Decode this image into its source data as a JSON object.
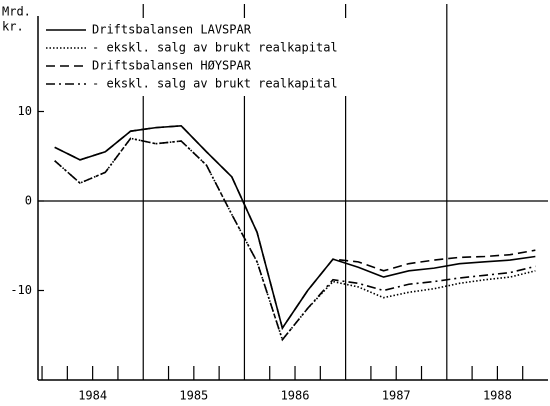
{
  "chart_data": {
    "type": "line",
    "y_unit_label": [
      "Mrd.",
      "kr."
    ],
    "x": [
      1984.125,
      1984.375,
      1984.625,
      1984.875,
      1985.125,
      1985.375,
      1985.625,
      1985.875,
      1986.125,
      1986.375,
      1986.625,
      1986.875,
      1987.125,
      1987.375,
      1987.625,
      1987.875,
      1988.125,
      1988.375,
      1988.625,
      1988.875
    ],
    "series": [
      {
        "name": "Driftsbalansen LAVSPAR",
        "color": "#000000",
        "dash": "solid",
        "values": [
          6,
          4.6,
          5.5,
          7.8,
          8.2,
          8.4,
          5.5,
          2.7,
          -3.5,
          -14.2,
          -10,
          -6.5,
          -7.4,
          -8.5,
          -7.8,
          -7.5,
          -7,
          -6.8,
          -6.6,
          -6.2
        ]
      },
      {
        "name": "- ekskl. salg av brukt realkapital",
        "color": "#000000",
        "dash": "dotted",
        "values": [
          4.5,
          2,
          3.2,
          7,
          6.4,
          6.7,
          4,
          -1.5,
          -6.8,
          -15.5,
          -12,
          -9,
          -9.6,
          -10.8,
          -10.2,
          -9.8,
          -9.2,
          -8.8,
          -8.5,
          -7.8
        ]
      },
      {
        "name": "Driftsbalansen HØYSPAR",
        "color": "#000000",
        "dash": "dashed",
        "values": [
          6,
          4.6,
          5.5,
          7.8,
          8.2,
          8.4,
          5.5,
          2.7,
          -3.5,
          -14.2,
          -10,
          -6.5,
          -6.8,
          -7.8,
          -7,
          -6.6,
          -6.3,
          -6.2,
          -6,
          -5.5
        ]
      },
      {
        "name": "- ekskl. salg av brukt realkapital",
        "color": "#000000",
        "dash": "dashdot",
        "values": [
          4.5,
          2,
          3.2,
          7,
          6.4,
          6.7,
          4,
          -1.5,
          -6.8,
          -15.5,
          -12,
          -8.8,
          -9.2,
          -10,
          -9.3,
          -9,
          -8.6,
          -8.3,
          -8,
          -7.3
        ]
      }
    ],
    "xlim": [
      1983.96,
      1989.0
    ],
    "ylim": [
      -20,
      20
    ],
    "yticks": [
      -10,
      0,
      10
    ],
    "xticks": [
      {
        "value": 1984.5,
        "label": "1984"
      },
      {
        "value": 1985.5,
        "label": "1985"
      },
      {
        "value": 1986.5,
        "label": "1986"
      },
      {
        "value": 1987.5,
        "label": "1987"
      },
      {
        "value": 1988.5,
        "label": "1988"
      }
    ],
    "x_gridlines": [
      1985,
      1986,
      1987,
      1988
    ],
    "minor_xticks": [
      1984,
      1984.25,
      1984.5,
      1984.75,
      1985.25,
      1985.5,
      1985.75,
      1986.25,
      1986.5,
      1986.75,
      1987.25,
      1987.5,
      1987.75,
      1988.25,
      1988.5,
      1988.75
    ],
    "zero_line": 0,
    "legend": "upper left"
  }
}
